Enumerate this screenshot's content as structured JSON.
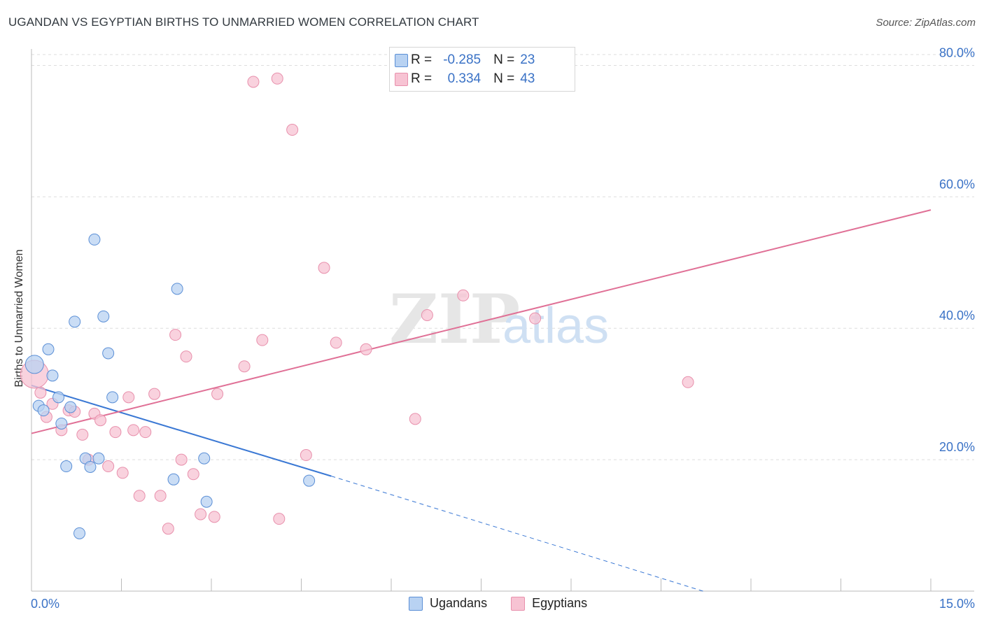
{
  "title": "UGANDAN VS EGYPTIAN BIRTHS TO UNMARRIED WOMEN CORRELATION CHART",
  "source": "Source: ZipAtlas.com",
  "watermark": {
    "zip": "ZIP",
    "atlas": "atlas"
  },
  "legend_top": {
    "r_label": "R =",
    "n_label": "N =",
    "rows": [
      {
        "series": "Ugandans",
        "r": "-0.285",
        "n": "23"
      },
      {
        "series": "Egyptians",
        "r": "0.334",
        "n": "43"
      }
    ]
  },
  "colors": {
    "ugandans_fill": "#b8d2f2",
    "ugandans_stroke": "#5b8fd6",
    "ugandans_line": "#3a78d4",
    "egyptians_fill": "#f7c3d3",
    "egyptians_stroke": "#e890ac",
    "egyptians_line": "#e07096",
    "axis_label": "#3a72c6",
    "grid": "#dddddd"
  },
  "chart_data": {
    "type": "scatter",
    "title": "UGANDAN VS EGYPTIAN BIRTHS TO UNMARRIED WOMEN CORRELATION CHART",
    "xlabel": "",
    "ylabel": "Births to Unmarried Women",
    "xlim": [
      0,
      15
    ],
    "ylim": [
      0,
      82.5
    ],
    "x_tick_labels": [
      "0.0%",
      "15.0%"
    ],
    "y_ticks": [
      20,
      40,
      60,
      80
    ],
    "y_tick_labels": [
      "20.0%",
      "40.0%",
      "60.0%",
      "80.0%"
    ],
    "legend": [
      "Ugandans",
      "Egyptians"
    ],
    "series": [
      {
        "name": "Ugandans",
        "points": [
          [
            0.05,
            34.5
          ],
          [
            0.12,
            28.2
          ],
          [
            0.2,
            27.5
          ],
          [
            0.28,
            36.8
          ],
          [
            0.35,
            32.8
          ],
          [
            0.45,
            29.5
          ],
          [
            0.5,
            25.5
          ],
          [
            0.58,
            19.0
          ],
          [
            0.65,
            28.0
          ],
          [
            0.72,
            41.0
          ],
          [
            0.8,
            8.8
          ],
          [
            0.9,
            20.2
          ],
          [
            0.98,
            18.9
          ],
          [
            1.05,
            53.5
          ],
          [
            1.12,
            20.2
          ],
          [
            1.2,
            41.8
          ],
          [
            1.28,
            36.2
          ],
          [
            1.35,
            29.5
          ],
          [
            2.37,
            17.0
          ],
          [
            2.43,
            46.0
          ],
          [
            2.88,
            20.2
          ],
          [
            2.92,
            13.6
          ],
          [
            4.63,
            16.8
          ]
        ],
        "trend": {
          "x_start": 0.0,
          "y_start": 31.3,
          "x_solid_end": 5.0,
          "y_solid_end": 17.5,
          "x_dash_end": 11.2,
          "y_dash_end": 0
        }
      },
      {
        "name": "Egyptians",
        "points": [
          [
            0.05,
            33.0
          ],
          [
            0.15,
            30.2
          ],
          [
            0.25,
            26.5
          ],
          [
            0.35,
            28.5
          ],
          [
            0.5,
            24.5
          ],
          [
            0.62,
            27.5
          ],
          [
            0.72,
            27.3
          ],
          [
            0.85,
            23.8
          ],
          [
            0.95,
            20.0
          ],
          [
            1.05,
            27.0
          ],
          [
            1.15,
            26.0
          ],
          [
            1.28,
            19.0
          ],
          [
            1.4,
            24.2
          ],
          [
            1.52,
            18.0
          ],
          [
            1.62,
            29.5
          ],
          [
            1.7,
            24.5
          ],
          [
            1.8,
            14.5
          ],
          [
            1.9,
            24.2
          ],
          [
            2.05,
            30.0
          ],
          [
            2.15,
            14.5
          ],
          [
            2.28,
            9.5
          ],
          [
            2.4,
            39.0
          ],
          [
            2.5,
            20.0
          ],
          [
            2.58,
            35.7
          ],
          [
            2.7,
            17.8
          ],
          [
            2.82,
            11.7
          ],
          [
            3.05,
            11.3
          ],
          [
            3.1,
            30.0
          ],
          [
            3.55,
            34.2
          ],
          [
            3.7,
            77.5
          ],
          [
            3.85,
            38.2
          ],
          [
            4.1,
            78.0
          ],
          [
            4.13,
            11.0
          ],
          [
            4.35,
            70.2
          ],
          [
            4.58,
            20.7
          ],
          [
            4.88,
            49.2
          ],
          [
            5.08,
            37.8
          ],
          [
            5.58,
            36.8
          ],
          [
            6.4,
            26.2
          ],
          [
            6.6,
            42.0
          ],
          [
            7.2,
            45.0
          ],
          [
            8.4,
            41.5
          ],
          [
            10.95,
            31.8
          ]
        ],
        "trend": {
          "x_start": 0.0,
          "y_start": 24.0,
          "x_end": 15.0,
          "y_end": 58.0
        }
      }
    ]
  }
}
